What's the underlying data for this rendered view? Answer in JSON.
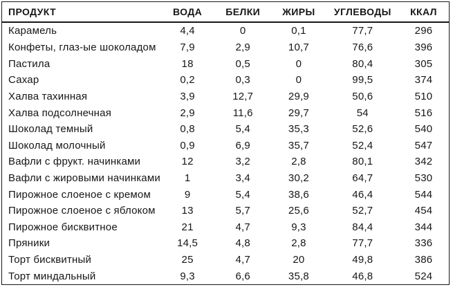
{
  "colors": {
    "background": "#ffffff",
    "border": "#161616",
    "text": "#161616"
  },
  "table": {
    "columns": [
      {
        "key": "product",
        "label": "ПРОДУКТ"
      },
      {
        "key": "water",
        "label": "ВОДА"
      },
      {
        "key": "protein",
        "label": "БЕЛКИ"
      },
      {
        "key": "fat",
        "label": "ЖИРЫ"
      },
      {
        "key": "carbs",
        "label": "УГЛЕВОДЫ"
      },
      {
        "key": "kcal",
        "label": "ККАЛ"
      }
    ],
    "rows": [
      [
        "Карамель",
        "4,4",
        "0",
        "0,1",
        "77,7",
        "296"
      ],
      [
        "Конфеты, глаз-ые шоколадом",
        "7,9",
        "2,9",
        "10,7",
        "76,6",
        "396"
      ],
      [
        "Пастила",
        "18",
        "0,5",
        "0",
        "80,4",
        "305"
      ],
      [
        "Сахар",
        "0,2",
        "0,3",
        "0",
        "99,5",
        "374"
      ],
      [
        "Халва тахинная",
        "3,9",
        "12,7",
        "29,9",
        "50,6",
        "510"
      ],
      [
        "Халва подсолнечная",
        "2,9",
        "11,6",
        "29,7",
        "54",
        "516"
      ],
      [
        "Шоколад темный",
        "0,8",
        "5,4",
        "35,3",
        "52,6",
        "540"
      ],
      [
        "Шоколад молочный",
        "0,9",
        "6,9",
        "35,7",
        "52,4",
        "547"
      ],
      [
        "Вафли с фрукт. начинками",
        "12",
        "3,2",
        "2,8",
        "80,1",
        "342"
      ],
      [
        "Вафли с жировыми начинками",
        "1",
        "3,4",
        "30,2",
        "64,7",
        "530"
      ],
      [
        "Пирожное слоеное с кремом",
        "9",
        "5,4",
        "38,6",
        "46,4",
        "544"
      ],
      [
        "Пирожное слоеное с яблоком",
        "13",
        "5,7",
        "25,6",
        "52,7",
        "454"
      ],
      [
        "Пирожное бисквитное",
        "21",
        "4,7",
        "9,3",
        "84,4",
        "344"
      ],
      [
        "Пряники",
        "14,5",
        "4,8",
        "2,8",
        "77,7",
        "336"
      ],
      [
        "Торт бисквитный",
        "25",
        "4,7",
        "20",
        "49,8",
        "386"
      ],
      [
        "Торт миндальный",
        "9,3",
        "6,6",
        "35,8",
        "46,8",
        "524"
      ]
    ]
  }
}
